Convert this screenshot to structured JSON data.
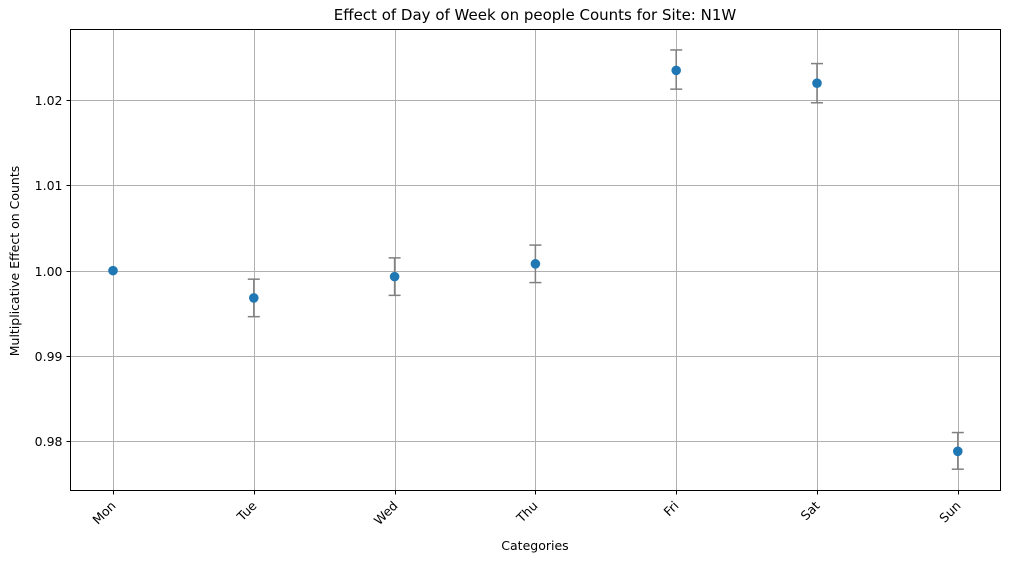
{
  "chart_data": {
    "type": "scatter",
    "title": "Effect of Day of Week on people Counts for Site: N1W",
    "xlabel": "Categories",
    "ylabel": "Multiplicative Effect on Counts",
    "categories": [
      "Mon",
      "Tue",
      "Wed",
      "Thu",
      "Fri",
      "Sat",
      "Sun"
    ],
    "values": [
      1.0,
      0.9968,
      0.9993,
      1.0008,
      1.0235,
      1.022,
      0.9788
    ],
    "error_low": [
      1.0,
      0.9946,
      0.9971,
      0.9986,
      1.0213,
      1.0197,
      0.9767
    ],
    "error_high": [
      1.0,
      0.999,
      1.0015,
      1.003,
      1.0259,
      1.0243,
      0.981
    ],
    "ylim": [
      0.9742,
      1.0283
    ],
    "yticks": [
      0.98,
      0.99,
      1.0,
      1.01,
      1.02
    ],
    "ytick_labels": [
      "0.98",
      "0.99",
      "1.00",
      "1.01",
      "1.02"
    ],
    "grid": true,
    "colors": {
      "marker": "#1f77b4",
      "errorbar": "#808080",
      "grid": "#b0b0b0"
    }
  }
}
